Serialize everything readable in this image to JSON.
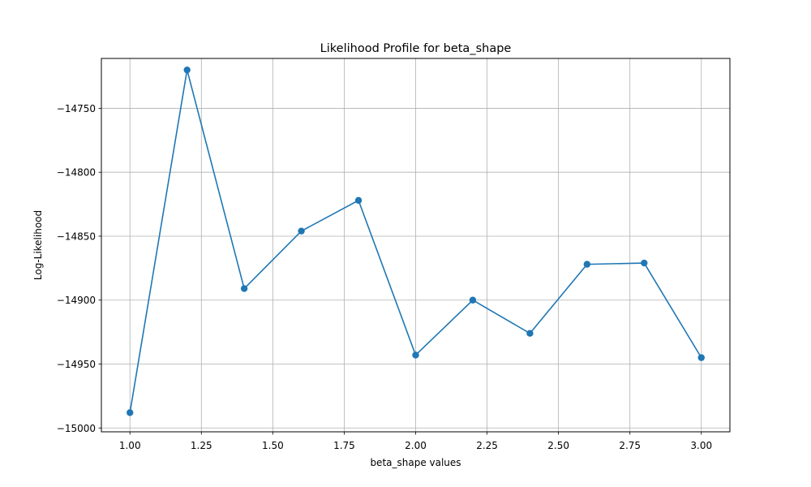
{
  "chart_data": {
    "type": "line",
    "title": "Likelihood Profile for beta_shape",
    "xlabel": "beta_shape values",
    "ylabel": "Log-Likelihood",
    "x": [
      1.0,
      1.2,
      1.4,
      1.6,
      1.8,
      2.0,
      2.2,
      2.4,
      2.6,
      2.8,
      3.0
    ],
    "series": [
      {
        "values": [
          -14988,
          -14720,
          -14891,
          -14846,
          -14822,
          -14943,
          -14900,
          -14926,
          -14872,
          -14871,
          -14945
        ]
      }
    ],
    "xlim": [
      0.9,
      3.1
    ],
    "ylim": [
      -15003,
      -14711
    ],
    "xticks": [
      1.0,
      1.25,
      1.5,
      1.75,
      2.0,
      2.25,
      2.5,
      2.75,
      3.0
    ],
    "xtick_labels": [
      "1.00",
      "1.25",
      "1.50",
      "1.75",
      "2.00",
      "2.25",
      "2.50",
      "2.75",
      "3.00"
    ],
    "yticks": [
      -15000,
      -14950,
      -14900,
      -14850,
      -14800,
      -14750
    ],
    "ytick_labels": [
      "−15000",
      "−14950",
      "−14900",
      "−14850",
      "−14800",
      "−14750"
    ],
    "grid": true,
    "line_color": "#1f77b4",
    "grid_color": "#b0b0b0"
  }
}
